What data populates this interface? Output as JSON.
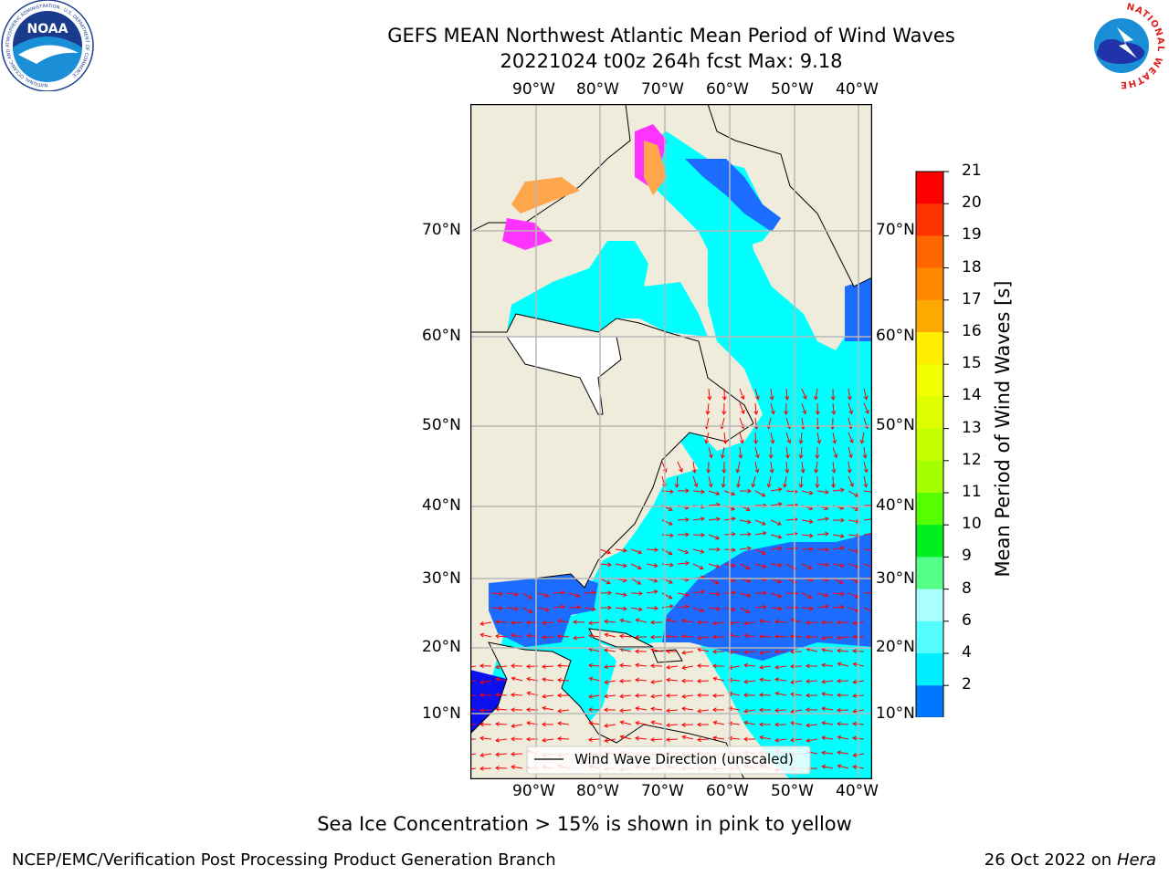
{
  "title": {
    "line1": "GEFS MEAN Northwest Atlantic Mean Period of Wind Waves",
    "line2": "20221024 t00z 264h fcst   Max: 9.18"
  },
  "map": {
    "lon_labels": [
      "90°W",
      "80°W",
      "70°W",
      "60°W",
      "50°W",
      "40°W"
    ],
    "lat_labels": [
      "70°N",
      "60°N",
      "50°N",
      "40°N",
      "30°N",
      "20°N",
      "10°N"
    ],
    "legend_label": "Wind Wave Direction (unscaled)",
    "colors": {
      "land": "#efecdc",
      "grid": "#b8b8b8",
      "arrows": "#ff0000",
      "ice_pink": "#ff33ff",
      "ice_orange": "#ffa64d"
    }
  },
  "colorbar": {
    "label": "Mean Period of Wind Waves [s]",
    "ticks": [
      "21",
      "20",
      "19",
      "18",
      "17",
      "16",
      "15",
      "14",
      "13",
      "12",
      "11",
      "10",
      "9",
      "8",
      "6",
      "4",
      "2"
    ],
    "colors": [
      "#ff0000",
      "#ff3300",
      "#ff6600",
      "#ff8800",
      "#ffaa00",
      "#ffee00",
      "#f2ff00",
      "#ddff00",
      "#c6ff00",
      "#a6ff00",
      "#55ff00",
      "#00ee22",
      "#55ff88",
      "#aaffff",
      "#55ffff",
      "#00eeff",
      "#0077ff",
      "#0000ff"
    ]
  },
  "logos": {
    "noaa_text": "NOAA",
    "noaa_ring_text": "NATIONAL OCEANIC AND ATMOSPHERIC ADMINISTRATION · U.S. DEPARTMENT OF COMMERCE",
    "nws_ring_text": "NATIONAL WEATHER SERVICE"
  },
  "footer": {
    "note": "Sea Ice Concentration > 15% is shown in pink to yellow",
    "org": "NCEP/EMC/Verification Post Processing Product Generation Branch",
    "date": "26 Oct 2022 on",
    "machine": "Hera"
  }
}
